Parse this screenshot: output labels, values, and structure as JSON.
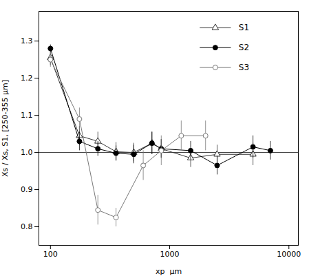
{
  "chart_data": {
    "type": "line",
    "xlabel": "xp  μm",
    "ylabel": "Xs / Xs, S1, [250-355 μm]",
    "log": "x",
    "xlim": [
      80,
      12000
    ],
    "ylim": [
      0.75,
      1.38
    ],
    "xticks": [
      100,
      1000,
      10000
    ],
    "yticks": [
      0.8,
      0.9,
      {
        "value": 1.0,
        "label": "1.0"
      },
      1.1,
      1.2,
      1.3
    ],
    "reference_line": 1.0,
    "grid": false,
    "legend": "upper right",
    "series": [
      {
        "name": "S1",
        "color": "#333333",
        "marker": "open-triangle",
        "x": [
          100,
          175,
          250,
          355,
          500,
          710,
          850,
          1500,
          2500,
          5000
        ],
        "values": [
          1.255,
          1.045,
          1.03,
          1.002,
          1.0,
          1.025,
          1.01,
          0.985,
          0.995,
          0.995
        ],
        "yerr": [
          0.02,
          0.025,
          0.025,
          0.025,
          0.025,
          0.03,
          0.025,
          0.025,
          0.025,
          0.03
        ]
      },
      {
        "name": "S2",
        "color": "#000000",
        "marker": "circle",
        "x": [
          100,
          175,
          250,
          355,
          500,
          710,
          850,
          1500,
          2500,
          5000,
          7000
        ],
        "values": [
          1.28,
          1.03,
          1.01,
          0.998,
          0.995,
          1.025,
          1.01,
          1.005,
          0.965,
          1.015,
          1.005
        ],
        "yerr": [
          0.01,
          0.025,
          0.02,
          0.02,
          0.025,
          0.03,
          0.025,
          0.025,
          0.025,
          0.03,
          0.025
        ]
      },
      {
        "name": "S3",
        "color": "#777777",
        "marker": "open-circle",
        "x": [
          100,
          175,
          250,
          355,
          600,
          850,
          1250,
          2000
        ],
        "values": [
          1.25,
          1.09,
          0.845,
          0.825,
          0.965,
          1.005,
          1.045,
          1.045
        ],
        "yerr": [
          0.02,
          0.03,
          0.04,
          0.025,
          0.04,
          0.04,
          0.04,
          0.04
        ]
      }
    ]
  }
}
